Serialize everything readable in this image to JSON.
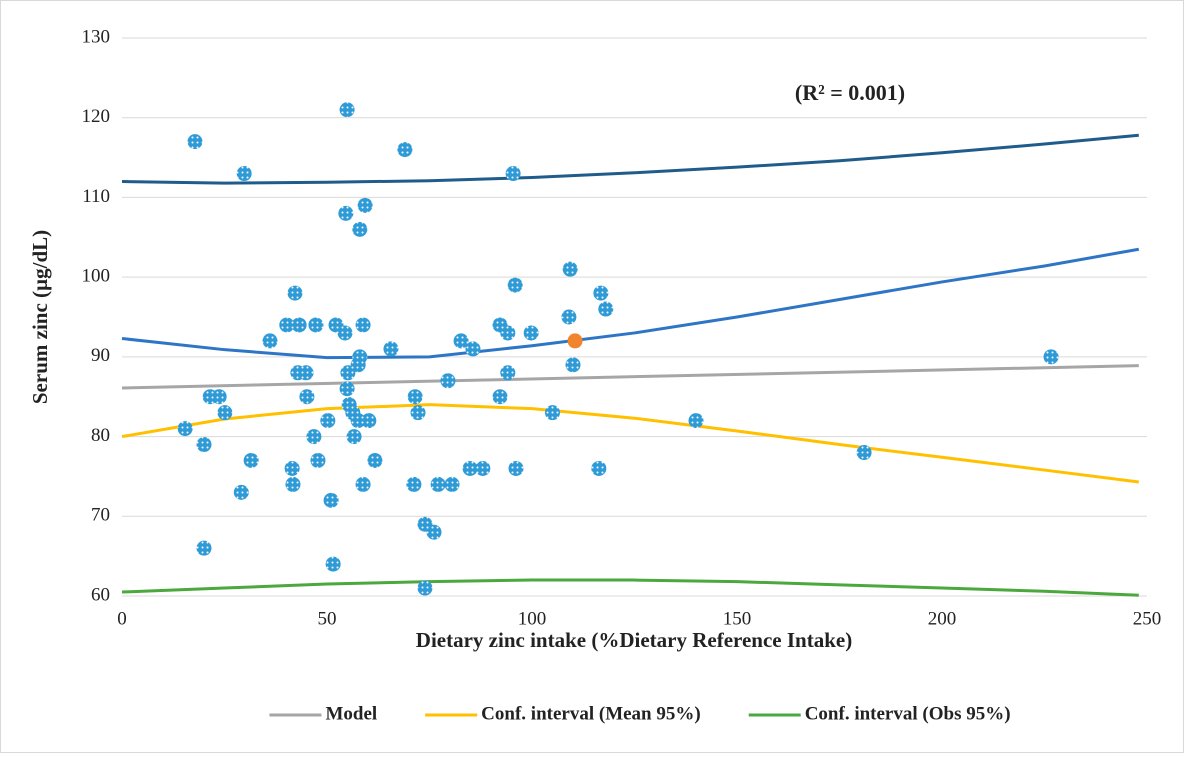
{
  "chart_data": {
    "type": "scatter",
    "x_label": "Dietary zinc intake (%Dietary Reference Intake)",
    "y_label": "Serum zinc (µg/dL)",
    "annotation": "(R² = 0.001)",
    "xlim": [
      0,
      250
    ],
    "ylim": [
      60,
      130
    ],
    "xticks": [
      0,
      50,
      100,
      150,
      200,
      250
    ],
    "yticks": [
      60,
      70,
      80,
      90,
      100,
      110,
      120,
      130
    ],
    "grid": true,
    "legend": "bottom",
    "series": [
      {
        "type": "scatter",
        "color": "#2e9bd6",
        "pattern": "dotted",
        "x": [
          17.8,
          29.8,
          54.9,
          69.0,
          95.4,
          54.6,
          59.3,
          58.0,
          109.3,
          42.2,
          95.9,
          116.8,
          118.0,
          109.0,
          36.1,
          40.2,
          43.2,
          47.3,
          52.2,
          54.4,
          58.8,
          92.2,
          94.1,
          99.8,
          65.6,
          82.7,
          85.6,
          58.0,
          57.6,
          42.9,
          44.9,
          55.1,
          94.1,
          110.0,
          54.9,
          15.4,
          21.5,
          23.7,
          25.1,
          45.1,
          46.8,
          47.8,
          20.0,
          31.5,
          29.1,
          20.0,
          41.5,
          41.7,
          50.2,
          51.0,
          51.5,
          55.4,
          56.3,
          56.6,
          57.6,
          60.2,
          58.8,
          61.7,
          71.5,
          72.2,
          71.2,
          73.9,
          76.1,
          73.9,
          77.1,
          80.5,
          79.5,
          84.9,
          88.0,
          92.2,
          96.1,
          105.0,
          116.3,
          140.0,
          181.0,
          226.6
        ],
        "values": [
          117,
          113,
          121,
          116,
          113,
          108,
          109,
          106,
          101,
          98,
          99,
          98,
          96,
          95,
          92,
          94,
          94,
          94,
          94,
          93,
          94,
          94,
          93,
          93,
          91,
          92,
          91,
          90,
          89,
          88,
          88,
          88,
          88,
          89,
          86,
          81,
          85,
          85,
          83,
          85,
          80,
          77,
          79,
          77,
          73,
          66,
          76,
          74,
          82,
          72,
          64,
          84,
          83,
          80,
          82,
          82,
          74,
          77,
          85,
          83,
          74,
          69,
          68,
          61,
          74,
          74,
          87,
          76,
          76,
          85,
          76,
          83,
          76,
          82,
          78,
          90
        ]
      },
      {
        "type": "scatter",
        "color": "#f0852d",
        "x": [
          110.5
        ],
        "values": [
          92
        ]
      },
      {
        "type": "line",
        "name": "Model",
        "color": "#a6a6a6",
        "x": [
          0,
          248
        ],
        "values": [
          86.1,
          88.9
        ]
      },
      {
        "type": "line",
        "color": "#2e75c6",
        "x": [
          0,
          25,
          50,
          75,
          100,
          125,
          150,
          175,
          200,
          225,
          248
        ],
        "values": [
          92.3,
          90.9,
          89.9,
          90.0,
          91.4,
          93.0,
          95.0,
          97.2,
          99.4,
          101.4,
          103.5
        ]
      },
      {
        "type": "line",
        "name": "Conf. interval (Mean 95%)",
        "color": "#ffc000",
        "x": [
          0,
          25,
          50,
          75,
          100,
          125,
          150,
          175,
          200,
          225,
          248
        ],
        "values": [
          80.0,
          82.2,
          83.5,
          84.0,
          83.5,
          82.3,
          80.7,
          79.0,
          77.4,
          75.8,
          74.3
        ]
      },
      {
        "type": "line",
        "color": "#1f5c8c",
        "x": [
          0,
          25,
          50,
          75,
          100,
          125,
          150,
          175,
          200,
          225,
          248
        ],
        "values": [
          112.0,
          111.8,
          111.9,
          112.1,
          112.5,
          113.1,
          113.8,
          114.6,
          115.6,
          116.7,
          117.8
        ]
      },
      {
        "type": "line",
        "name": "Conf. interval (Obs 95%)",
        "color": "#4aa83c",
        "x": [
          0,
          25,
          50,
          75,
          100,
          125,
          150,
          175,
          200,
          225,
          248
        ],
        "values": [
          60.5,
          61.0,
          61.5,
          61.8,
          62.0,
          62.0,
          61.8,
          61.4,
          61.0,
          60.6,
          60.1
        ]
      }
    ]
  }
}
